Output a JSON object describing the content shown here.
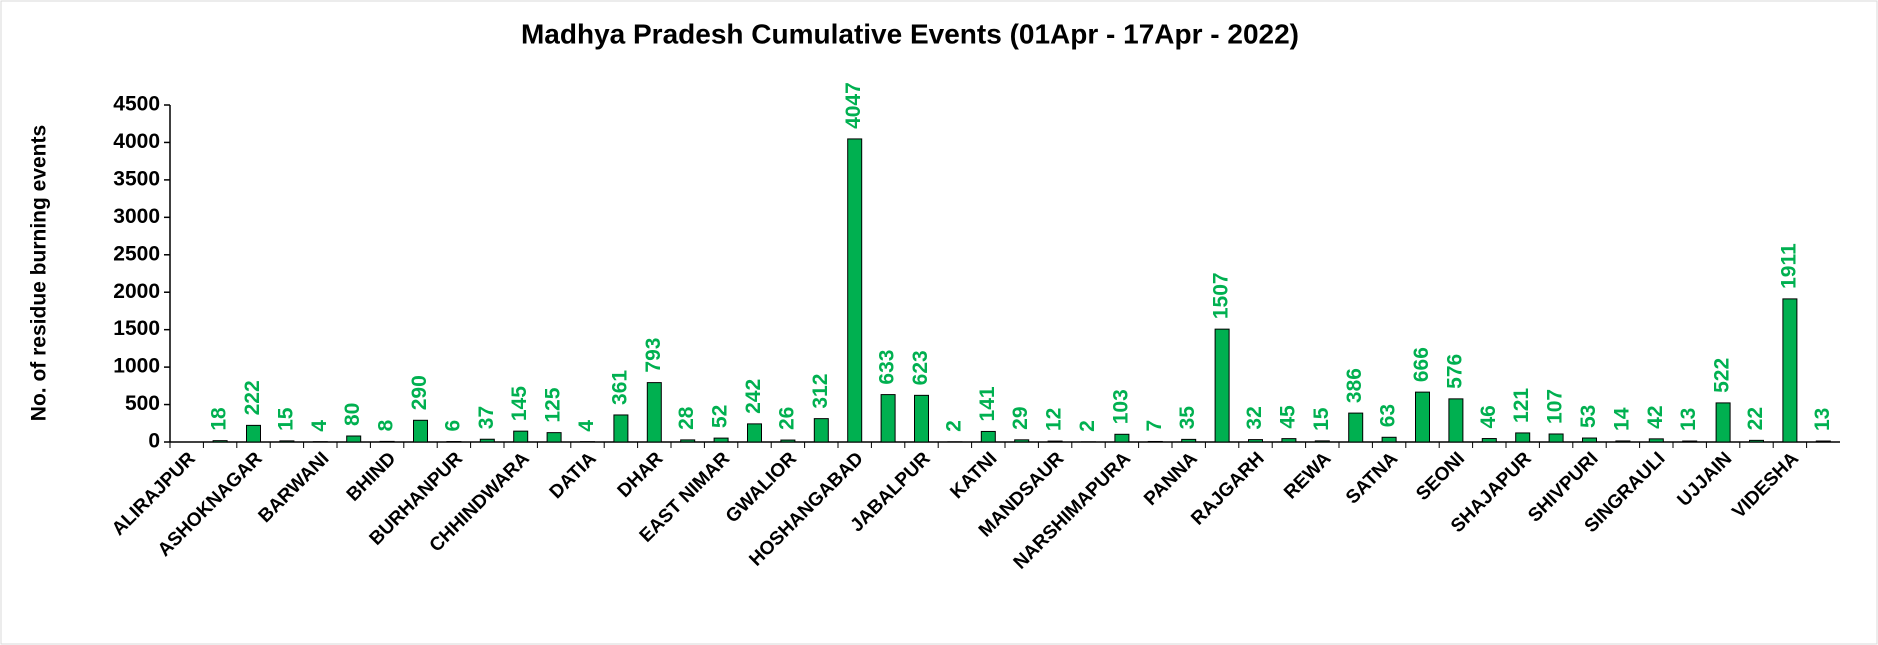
{
  "chart_data": {
    "type": "bar",
    "title": "Madhya Pradesh Cumulative Events (01Apr - 17Apr - 2022)",
    "y_label": "No. of residue burning events",
    "categories": [
      "ALIRAJPUR",
      null,
      "ASHOKNAGAR",
      null,
      "BARWANI",
      null,
      "BHIND",
      null,
      "BURHANPUR",
      null,
      "CHHINDWARA",
      null,
      "DATIA",
      null,
      "DHAR",
      null,
      "EAST NIMAR",
      null,
      "GWALIOR",
      null,
      "HOSHANGABAD",
      null,
      "JABALPUR",
      null,
      "KATNI",
      null,
      "MANDSAUR",
      null,
      "NARSHIMAPURA",
      null,
      "PANNA",
      null,
      "RAJGARH",
      null,
      "REWA",
      null,
      "SATNA",
      null,
      "SEONI",
      null,
      "SHAJAPUR",
      null,
      "SHIVPURI",
      null,
      "SINGRAULI",
      null,
      "UJJAIN",
      null,
      "VIDESHA",
      null
    ],
    "values": [
      null,
      18,
      222,
      15,
      4,
      80,
      8,
      290,
      6,
      37,
      145,
      125,
      4,
      361,
      793,
      28,
      52,
      242,
      26,
      312,
      4047,
      633,
      623,
      2,
      141,
      29,
      12,
      2,
      103,
      7,
      35,
      1507,
      32,
      45,
      15,
      386,
      63,
      666,
      576,
      46,
      121,
      107,
      53,
      14,
      42,
      13,
      522,
      22,
      1911,
      13
    ],
    "color": "#00b050",
    "label_color": "#00b050",
    "ylim": [
      0,
      4500
    ],
    "yticks": [
      0,
      500,
      1000,
      1500,
      2000,
      2500,
      3000,
      3500,
      4000,
      4500
    ]
  }
}
